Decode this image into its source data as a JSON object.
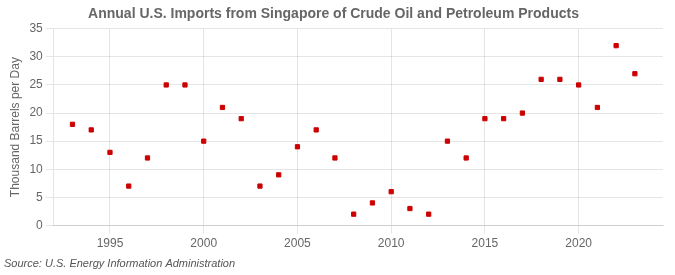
{
  "chart_data": {
    "type": "scatter",
    "title": "Annual U.S. Imports from Singapore of Crude Oil and Petroleum Products",
    "ylabel": "Thousand Barrels per Day",
    "annotation": "Source: U.S. Energy Information Administration",
    "x": [
      1993,
      1994,
      1995,
      1996,
      1997,
      1998,
      1999,
      2000,
      2001,
      2002,
      2003,
      2004,
      2005,
      2006,
      2007,
      2008,
      2009,
      2010,
      2011,
      2012,
      2013,
      2014,
      2015,
      2016,
      2017,
      2018,
      2019,
      2020,
      2021,
      2022,
      2023
    ],
    "values": [
      18,
      17,
      13,
      7,
      12,
      25,
      25,
      15,
      21,
      19,
      7,
      9,
      14,
      17,
      12,
      2,
      4,
      6,
      3,
      2,
      15,
      12,
      19,
      19,
      20,
      26,
      26,
      25,
      21,
      32,
      27
    ],
    "color": "#cc0000",
    "marker": "square",
    "xlim": [
      1992,
      2024.5
    ],
    "xticks": [
      1995,
      2000,
      2005,
      2010,
      2015,
      2020
    ],
    "ylim": [
      0,
      35
    ],
    "yticks": [
      0,
      5,
      10,
      15,
      20,
      25,
      30,
      35
    ],
    "grid": true
  }
}
